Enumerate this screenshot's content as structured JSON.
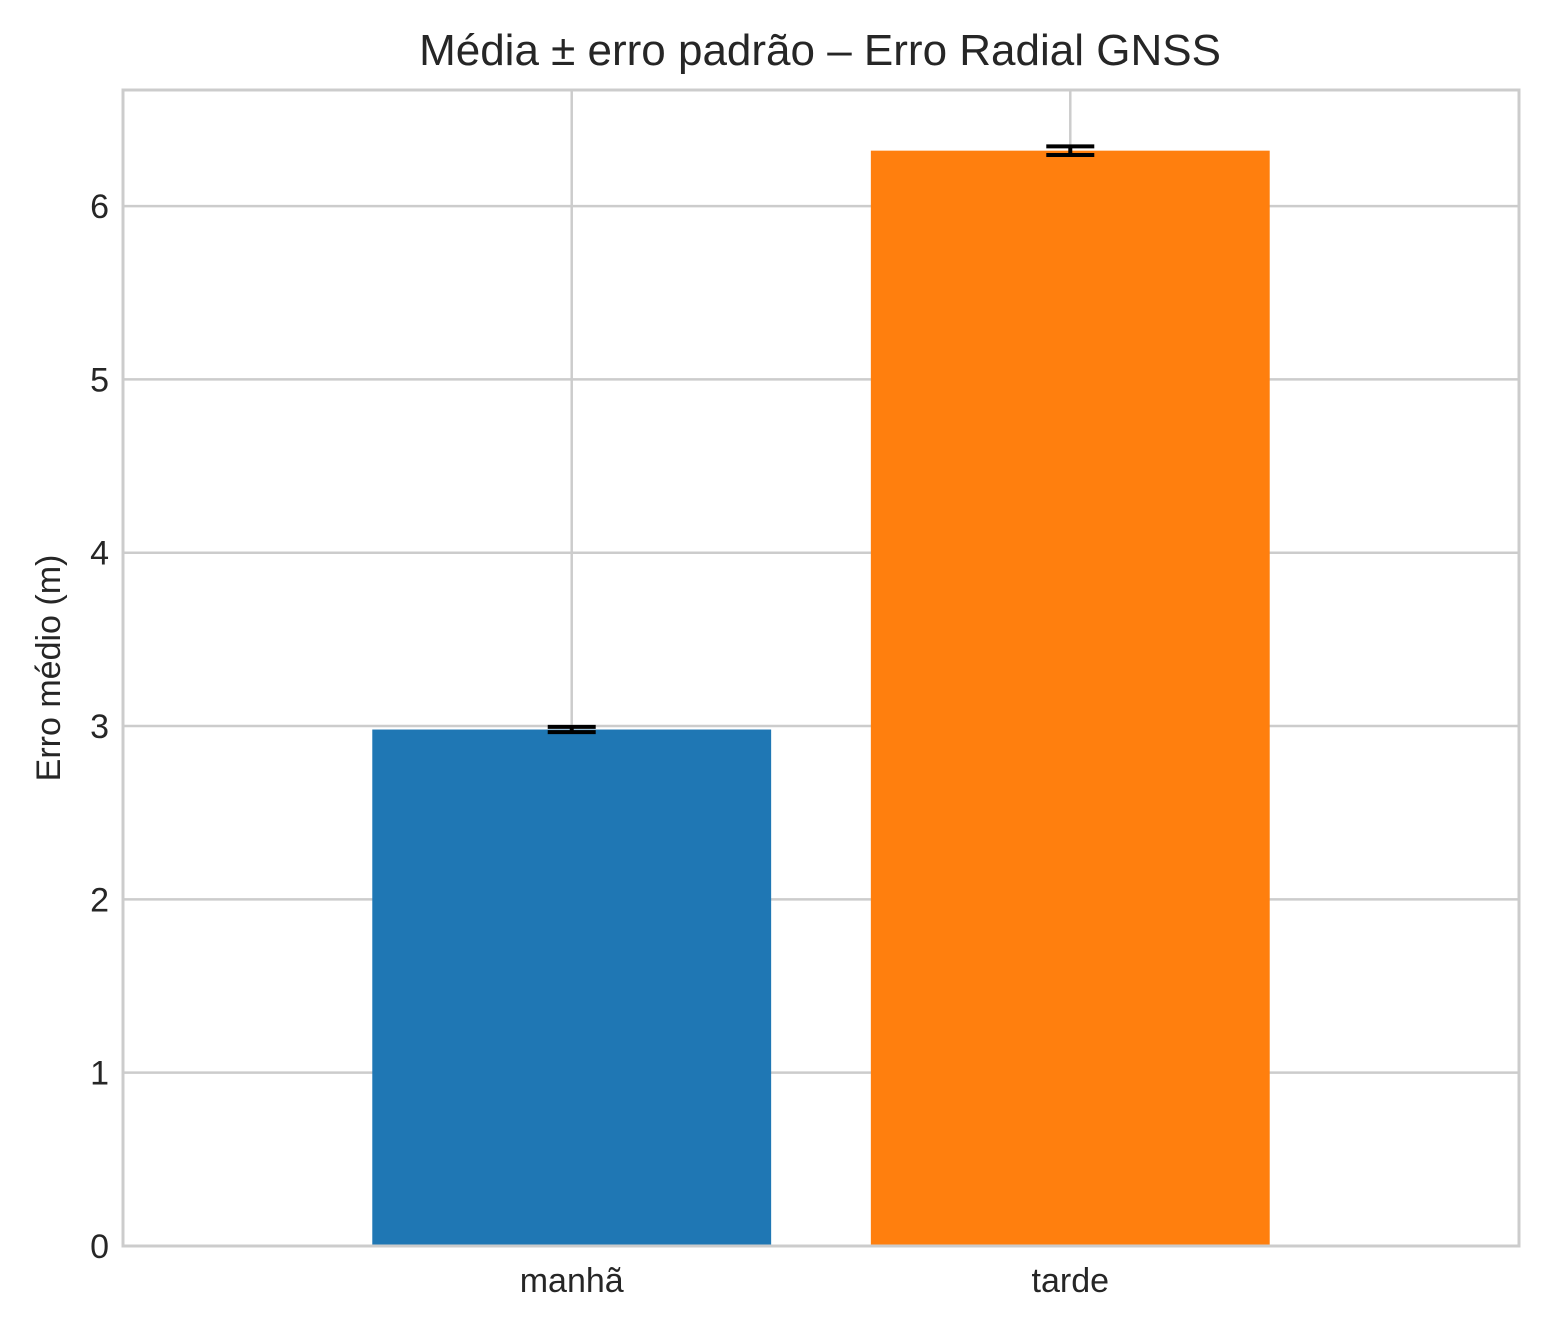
{
  "chart_data": {
    "type": "bar",
    "title": "Média ± erro padrão – Erro Radial GNSS",
    "xlabel": "",
    "ylabel": "Erro médio (m)",
    "categories": [
      "manhã",
      "tarde"
    ],
    "values": [
      2.98,
      6.32
    ],
    "errors": [
      0.015,
      0.025
    ],
    "colors": [
      "#1f77b4",
      "#ff7f0e"
    ],
    "error_color": "#000000",
    "ylim": [
      0,
      6.67
    ],
    "yticks": [
      0,
      1,
      2,
      3,
      4,
      5,
      6
    ],
    "grid": true,
    "legend": "none"
  }
}
